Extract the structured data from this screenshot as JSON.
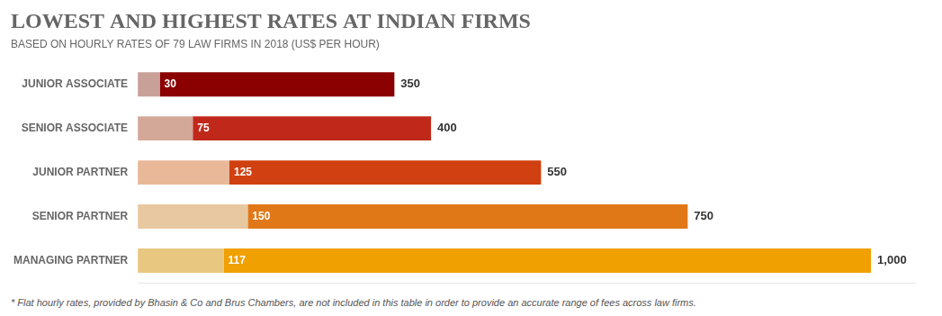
{
  "chart_data": {
    "type": "bar",
    "orientation": "horizontal",
    "title": "LOWEST AND HIGHEST RATES AT INDIAN FIRMS",
    "subtitle": "BASED ON HOURLY RATES OF 79 LAW FIRMS IN 2018 (US$ PER HOUR)",
    "footnote": "* Flat hourly rates, provided by Bhasin & Co and Brus Chambers, are not included in this table in order to provide an accurate range of fees across law firms.",
    "categories": [
      "JUNIOR ASSOCIATE",
      "SENIOR ASSOCIATE",
      "JUNIOR PARTNER",
      "SENIOR PARTNER",
      "MANAGING PARTNER"
    ],
    "series": [
      {
        "type": "bar",
        "values": [
          30,
          75,
          125,
          150,
          117
        ],
        "colors": [
          "#c8a098",
          "#d4a898",
          "#e8b898",
          "#e8c8a0",
          "#e8c880"
        ]
      },
      {
        "type": "range",
        "values": [
          350,
          400,
          550,
          750,
          1000
        ],
        "value_labels": [
          "350",
          "400",
          "550",
          "750",
          "1,000"
        ],
        "colors": [
          "#8b0000",
          "#c0291a",
          "#d04010",
          "#e07818",
          "#f0a000"
        ]
      }
    ],
    "xlim": [
      0,
      1060
    ],
    "grid": false,
    "data_labels": true,
    "tick_labels": "y"
  }
}
